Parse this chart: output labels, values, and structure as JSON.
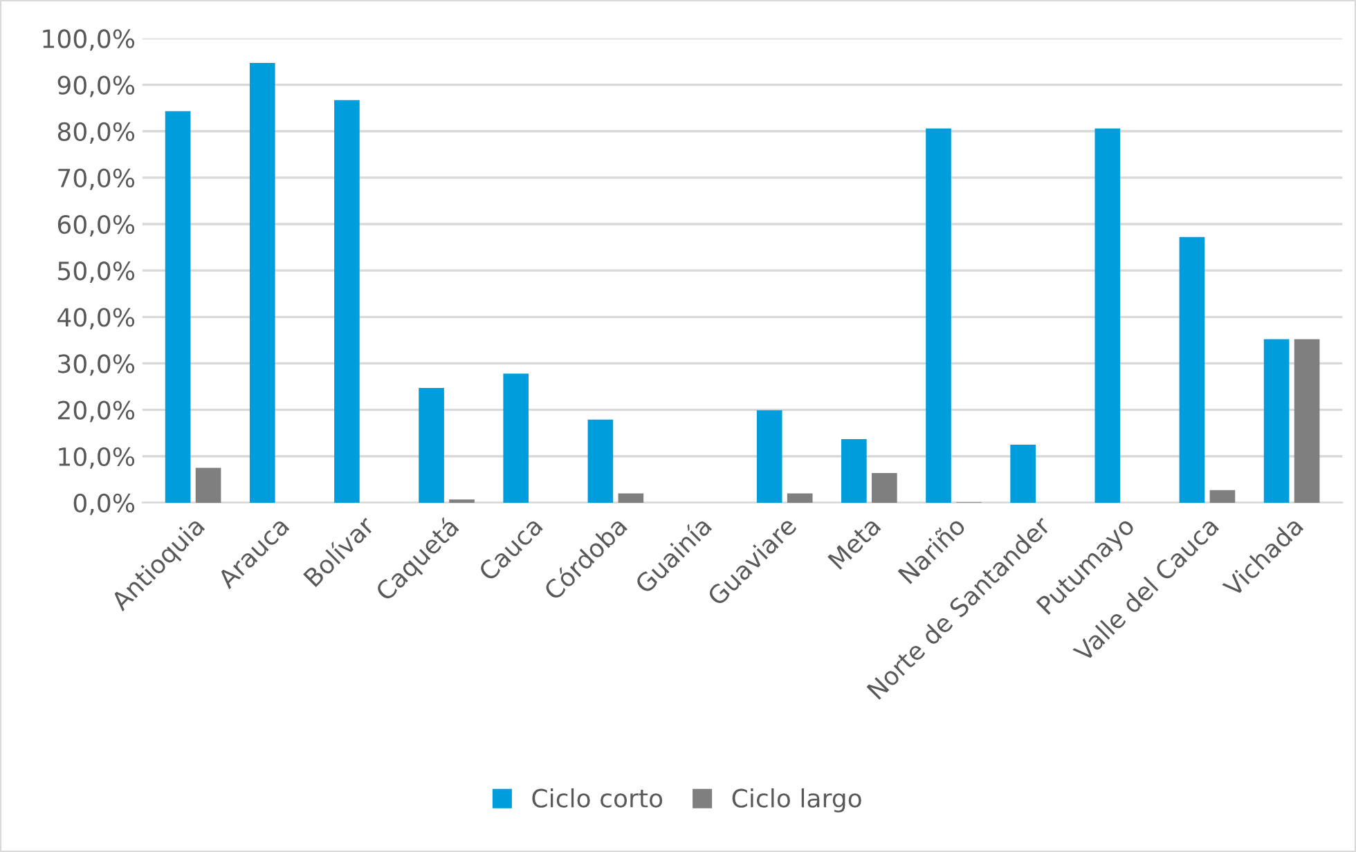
{
  "chart_data": {
    "type": "bar",
    "categories": [
      "Antioquia",
      "Arauca",
      "Bolívar",
      "Caquetá",
      "Cauca",
      "Córdoba",
      "Guainía",
      "Guaviare",
      "Meta",
      "Nariño",
      "Norte de Santander",
      "Putumayo",
      "Valle del Cauca",
      "Vichada"
    ],
    "series": [
      {
        "name": "Ciclo corto",
        "color": "#009ddc",
        "values": [
          84.3,
          94.7,
          86.7,
          24.7,
          27.8,
          17.9,
          0,
          19.9,
          13.7,
          80.6,
          12.5,
          80.6,
          57.2,
          35.2
        ]
      },
      {
        "name": "Ciclo largo",
        "color": "#7f7f7f",
        "values": [
          7.5,
          0,
          0,
          0.7,
          0,
          2.0,
          0,
          2.0,
          6.4,
          0.1,
          0,
          0,
          2.7,
          35.2
        ]
      }
    ],
    "ylim": [
      0,
      100
    ],
    "yticks": [
      {
        "value": 0,
        "label": "0,0%"
      },
      {
        "value": 10,
        "label": "10,0%"
      },
      {
        "value": 20,
        "label": "20,0%"
      },
      {
        "value": 30,
        "label": "30,0%"
      },
      {
        "value": 40,
        "label": "40,0%"
      },
      {
        "value": 50,
        "label": "50,0%"
      },
      {
        "value": 60,
        "label": "60,0%"
      },
      {
        "value": 70,
        "label": "70,0%"
      },
      {
        "value": 80,
        "label": "80,0%"
      },
      {
        "value": 90,
        "label": "90,0%"
      },
      {
        "value": 100,
        "label": "100,0%"
      }
    ],
    "grid": "y",
    "legend": "bottom"
  }
}
